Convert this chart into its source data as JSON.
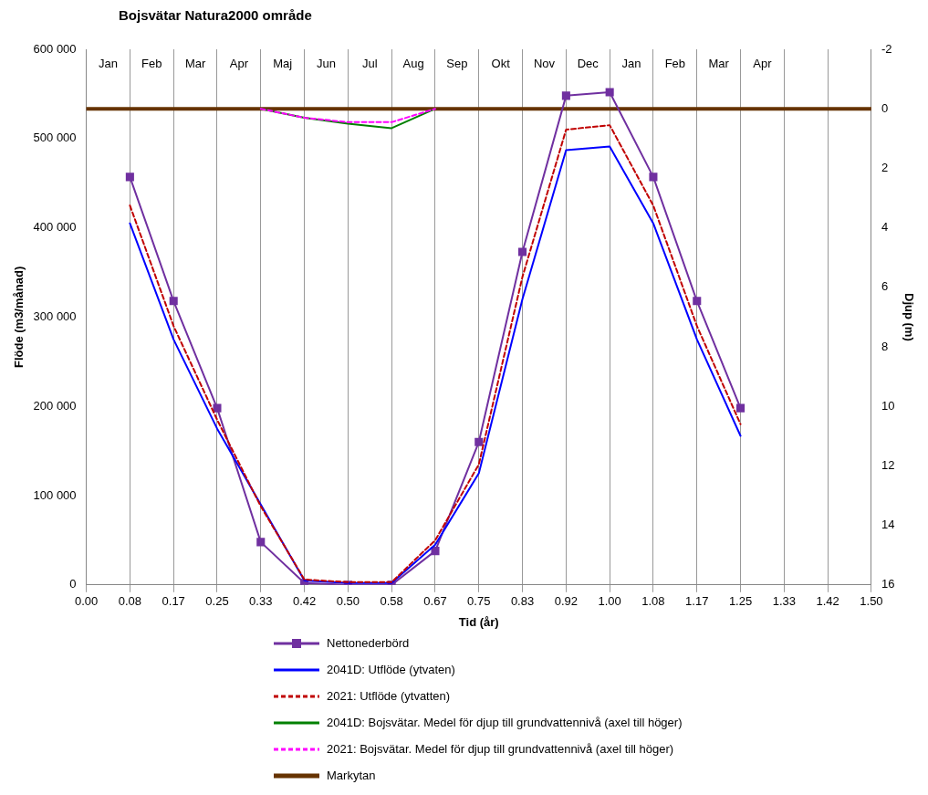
{
  "chart_data": {
    "type": "line",
    "title": "Bojsvätar Natura2000 område",
    "xlabel": "Tid (år)",
    "ylabel": "Flöde (m3/månad)",
    "y2label": "Djup (m)",
    "xlim": [
      0,
      1.5
    ],
    "xticks": [
      {
        "value": 0,
        "label": "0.00"
      },
      {
        "value": 0.0833,
        "label": "0.08"
      },
      {
        "value": 0.1667,
        "label": "0.17"
      },
      {
        "value": 0.25,
        "label": "0.25"
      },
      {
        "value": 0.3333,
        "label": "0.33"
      },
      {
        "value": 0.4167,
        "label": "0.42"
      },
      {
        "value": 0.5,
        "label": "0.50"
      },
      {
        "value": 0.5833,
        "label": "0.58"
      },
      {
        "value": 0.6667,
        "label": "0.67"
      },
      {
        "value": 0.75,
        "label": "0.75"
      },
      {
        "value": 0.8333,
        "label": "0.83"
      },
      {
        "value": 0.9167,
        "label": "0.92"
      },
      {
        "value": 1,
        "label": "1.00"
      },
      {
        "value": 1.0833,
        "label": "1.08"
      },
      {
        "value": 1.1667,
        "label": "1.17"
      },
      {
        "value": 1.25,
        "label": "1.25"
      },
      {
        "value": 1.3333,
        "label": "1.33"
      },
      {
        "value": 1.4167,
        "label": "1.42"
      },
      {
        "value": 1.5,
        "label": "1.50"
      }
    ],
    "annotations": [
      "Jan",
      "Feb",
      "Mar",
      "Apr",
      "Maj",
      "Jun",
      "Jul",
      "Aug",
      "Sep",
      "Okt",
      "Nov",
      "Dec",
      "Jan",
      "Feb",
      "Mar",
      "Apr"
    ],
    "ylim": [
      0,
      600000
    ],
    "yticks": [
      {
        "value": 0,
        "label": "0"
      },
      {
        "value": 100000,
        "label": "100 000"
      },
      {
        "value": 200000,
        "label": "200 000"
      },
      {
        "value": 300000,
        "label": "300 000"
      },
      {
        "value": 400000,
        "label": "400 000"
      },
      {
        "value": 500000,
        "label": "500 000"
      },
      {
        "value": 600000,
        "label": "600 000"
      }
    ],
    "y2lim": [
      16,
      -2
    ],
    "y2ticks": [
      -2,
      0,
      2,
      4,
      6,
      8,
      10,
      12,
      14,
      16
    ],
    "grid": "x",
    "legend": "bottom",
    "series": [
      {
        "name": "Nettonederbörd",
        "color": "#7030a0",
        "marker": "square",
        "line_style": "solid",
        "x": [
          0.0833,
          0.1667,
          0.25,
          0.3333,
          0.4167,
          0.5,
          0.5833,
          0.6667,
          0.75,
          0.8333,
          0.9167,
          1,
          1.0833,
          1.1667,
          1.25
        ],
        "values": [
          457000,
          318000,
          198000,
          48000,
          2000,
          0,
          0,
          38000,
          160000,
          373000,
          548000,
          552000,
          457000,
          318000,
          198000
        ]
      },
      {
        "name": "2041D: Utflöde (ytvaten)",
        "color": "#0000ff",
        "marker": "none",
        "line_style": "solid",
        "x": [
          0.0833,
          0.1667,
          0.25,
          0.3333,
          0.4167,
          0.5,
          0.5833,
          0.6667,
          0.75,
          0.8333,
          0.9167,
          1,
          1.0833,
          1.1667,
          1.25
        ],
        "values": [
          405000,
          275000,
          175000,
          90000,
          5000,
          2000,
          2000,
          45000,
          125000,
          320000,
          487000,
          491000,
          405000,
          275000,
          167000
        ]
      },
      {
        "name": "2021: Utflöde (ytvatten)",
        "color": "#c00000",
        "marker": "none",
        "line_style": "dashed",
        "x": [
          0.0833,
          0.1667,
          0.25,
          0.3333,
          0.4167,
          0.5,
          0.5833,
          0.6667,
          0.75,
          0.8333,
          0.9167,
          1,
          1.0833,
          1.1667,
          1.25
        ],
        "values": [
          425000,
          290000,
          185000,
          88000,
          6000,
          3000,
          3000,
          50000,
          135000,
          345000,
          510000,
          515000,
          425000,
          290000,
          180000
        ]
      },
      {
        "name": "2041D: Bojsvätar. Medel för djup till grundvattennivå (axel till höger)",
        "color": "#008000",
        "marker": "none",
        "line_style": "solid",
        "axis": "y2",
        "x": [
          0.3333,
          0.4167,
          0.5,
          0.5833,
          0.6667
        ],
        "values": [
          0,
          0.3,
          0.5,
          0.65,
          0
        ]
      },
      {
        "name": "2021: Bojsvätar. Medel för djup till grundvattennivå (axel till höger)",
        "color": "#ff00ff",
        "marker": "none",
        "line_style": "dashed",
        "axis": "y2",
        "x": [
          0.3333,
          0.4167,
          0.5,
          0.5833,
          0.6667
        ],
        "values": [
          0,
          0.3,
          0.45,
          0.45,
          0
        ]
      },
      {
        "name": "Markytan",
        "color": "#663300",
        "marker": "none",
        "line_style": "solid",
        "axis": "y2",
        "x": [
          0,
          1.5
        ],
        "values": [
          0,
          0
        ]
      }
    ]
  }
}
